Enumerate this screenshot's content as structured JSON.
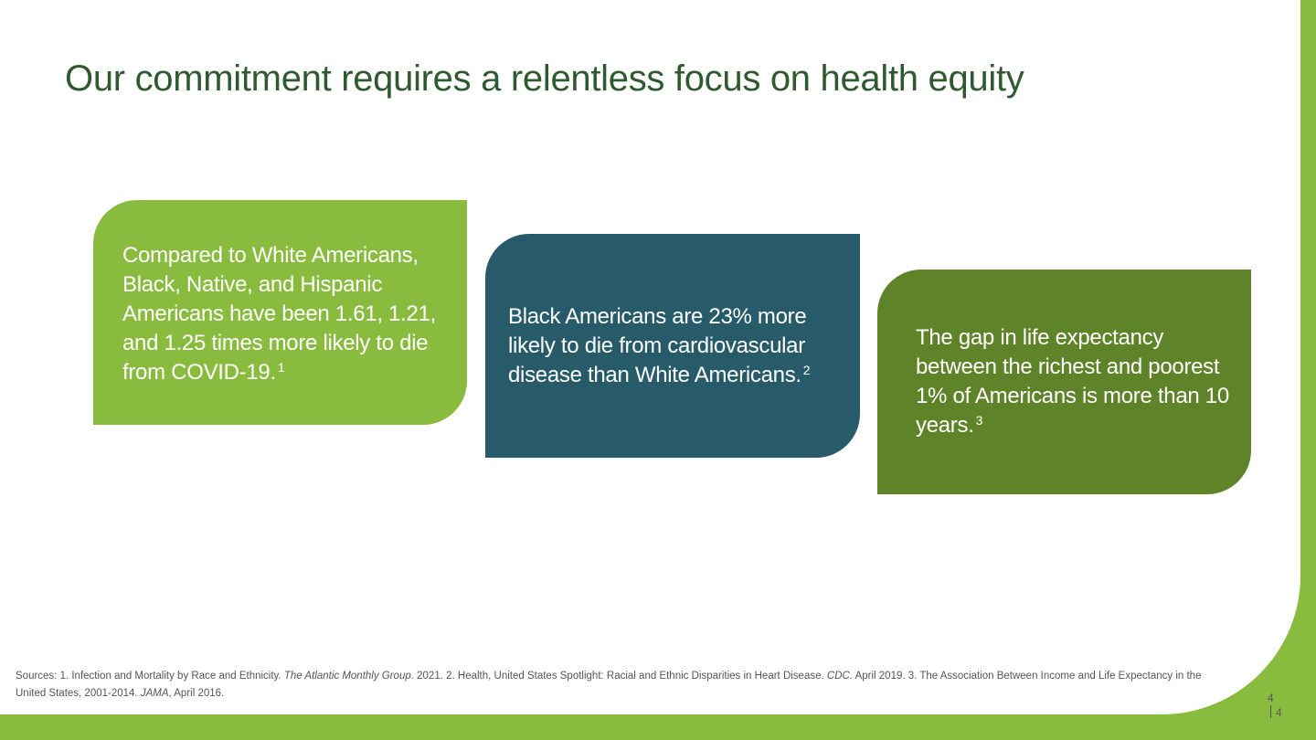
{
  "slide": {
    "title": "Our commitment requires a relentless focus on health equity",
    "page_number_top": "4",
    "page_number": "4"
  },
  "cards": [
    {
      "text": "Compared to White Americans, Black, Native, and Hispanic Americans have been 1.61, 1.21, and 1.25 times more likely to die from COVID-19.",
      "footnote": "1"
    },
    {
      "text": "Black Americans are 23% more likely to die from cardiovascular disease than White Americans.",
      "footnote": "2"
    },
    {
      "text": "The gap in life expectancy between the richest and poorest 1% of Americans is more than 10 years.",
      "footnote": "3"
    }
  ],
  "sources": {
    "prefix": "Sources: 1. Infection and Mortality by Race and Ethnicity. ",
    "pub1": "The Atlantic Monthly Group",
    "part2": ". 2021. 2. Health, United States Spotlight: Racial and Ethnic Disparities in Heart Disease. ",
    "pub2": "CDC.",
    "part3": " April 2019. 3. The Association Between Income and Life Expectancy in the United States, 2001-2014. ",
    "pub3": "JAMA",
    "suffix": ", April 2016."
  },
  "colors": {
    "accent_green": "#89bb3f",
    "dark_green": "#5e8329",
    "teal": "#275b6a",
    "title_green": "#2f5a2f"
  }
}
